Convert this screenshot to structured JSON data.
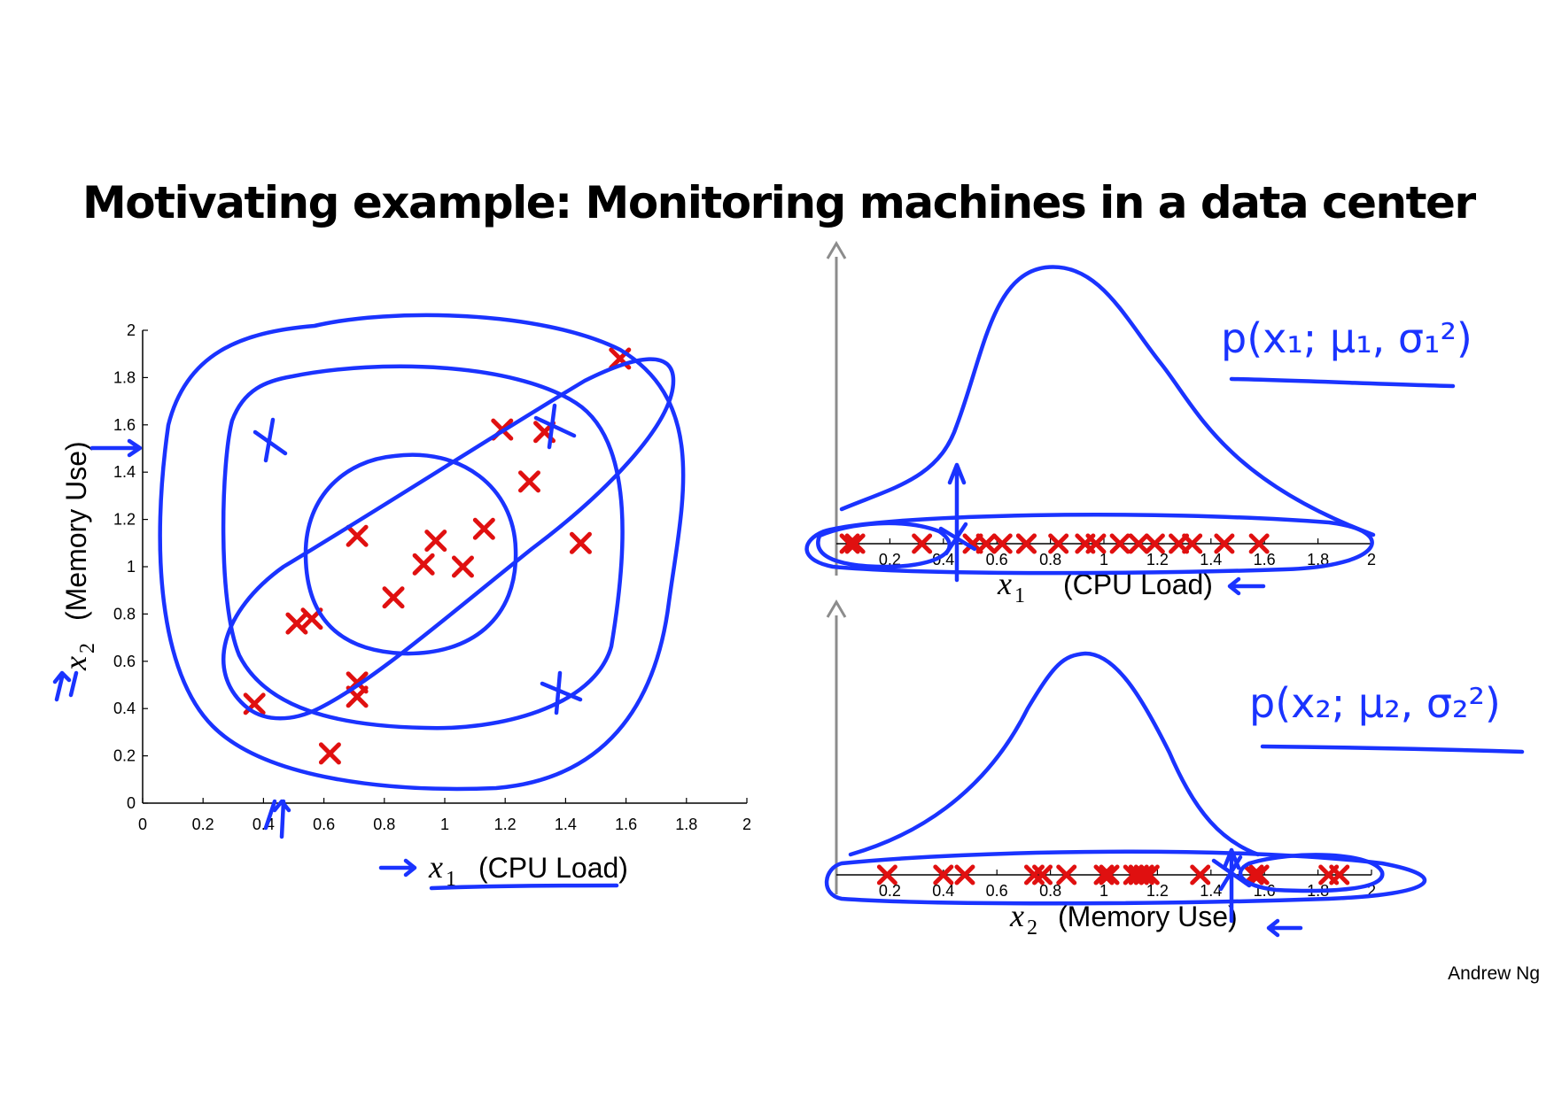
{
  "slide": {
    "title": "Motivating example: Monitoring machines in a data center",
    "credit": "Andrew Ng"
  },
  "colors": {
    "marker": "#e01010",
    "ink": "#1a33ff",
    "axis_arrow": "#8c8c8c"
  },
  "chart_data": [
    {
      "type": "scatter",
      "xlabel_math": "x",
      "xlabel_sub": "1",
      "xlabel_text": "(CPU Load)",
      "ylabel_math": "x",
      "ylabel_sub": "2",
      "ylabel_text": "(Memory Use)",
      "xlim": [
        0,
        2
      ],
      "ylim": [
        0,
        2
      ],
      "xticks": [
        "0",
        "0.2",
        "0.4",
        "0.6",
        "0.8",
        "1",
        "1.2",
        "1.4",
        "1.6",
        "1.8",
        "2"
      ],
      "yticks": [
        "0",
        "0.2",
        "0.4",
        "0.6",
        "0.8",
        "1",
        "1.2",
        "1.4",
        "1.6",
        "1.8",
        "2"
      ],
      "points": [
        [
          0.37,
          0.42
        ],
        [
          0.51,
          0.76
        ],
        [
          0.56,
          0.78
        ],
        [
          0.62,
          0.21
        ],
        [
          0.71,
          0.51
        ],
        [
          0.71,
          0.45
        ],
        [
          0.71,
          1.13
        ],
        [
          0.83,
          0.87
        ],
        [
          0.93,
          1.01
        ],
        [
          0.97,
          1.11
        ],
        [
          1.06,
          1.0
        ],
        [
          1.13,
          1.16
        ],
        [
          1.19,
          1.58
        ],
        [
          1.28,
          1.36
        ],
        [
          1.33,
          1.57
        ],
        [
          1.45,
          1.1
        ],
        [
          1.58,
          1.88
        ]
      ],
      "annotation_points": [
        [
          0.42,
          1.52
        ],
        [
          1.38,
          1.6
        ],
        [
          1.38,
          0.47
        ]
      ]
    },
    {
      "type": "scatter",
      "xlabel_math": "x",
      "xlabel_sub": "1",
      "xlabel_text": "(CPU Load)",
      "xlim": [
        0,
        2
      ],
      "xticks": [
        "0.2",
        "0.4",
        "0.6",
        "0.8",
        "1",
        "1.2",
        "1.4",
        "1.6",
        "1.8",
        "2"
      ],
      "points": [
        0.05,
        0.07,
        0.32,
        0.51,
        0.56,
        0.62,
        0.71,
        0.71,
        0.83,
        0.93,
        0.97,
        1.06,
        1.13,
        1.19,
        1.28,
        1.33,
        1.45,
        1.58
      ],
      "annotation_points": [
        0.47
      ],
      "density_label": "p(x₁; μ₁, σ₁²)"
    },
    {
      "type": "scatter",
      "xlabel_math": "x",
      "xlabel_sub": "2",
      "xlabel_text": "(Memory Use)",
      "xlim": [
        0,
        2
      ],
      "xticks": [
        "0.2",
        "0.4",
        "0.6",
        "0.8",
        "1",
        "1.2",
        "1.4",
        "1.6",
        "1.8",
        "2"
      ],
      "points": [
        0.19,
        0.4,
        0.48,
        0.74,
        0.77,
        0.86,
        1.0,
        1.02,
        1.11,
        1.13,
        1.15,
        1.17,
        1.36,
        1.56,
        1.58,
        1.84,
        1.88
      ],
      "annotation_points": [
        1.5
      ],
      "density_label": "p(x₂; μ₂, σ₂²)"
    }
  ]
}
